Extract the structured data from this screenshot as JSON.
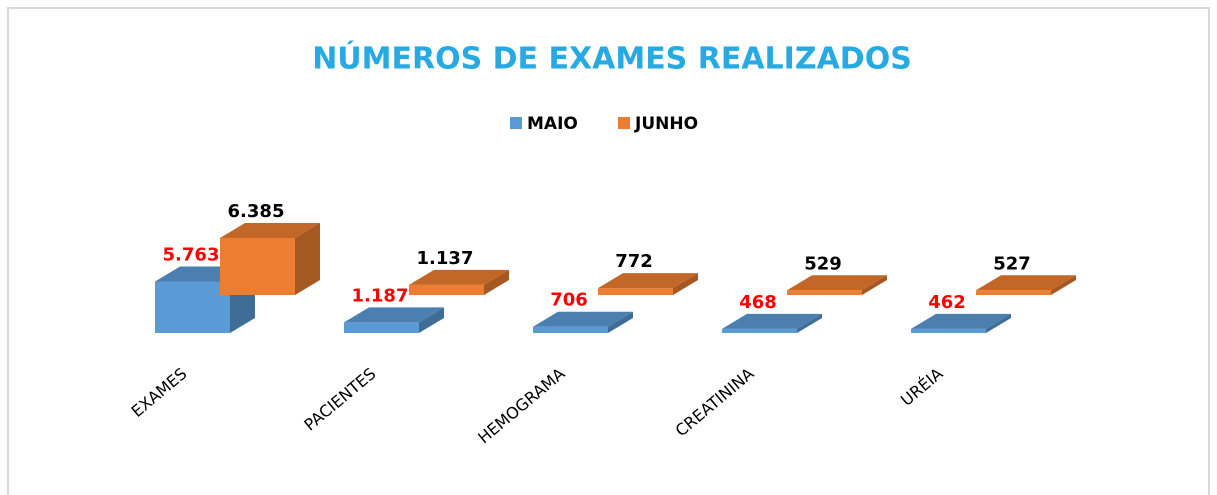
{
  "chart_data": {
    "type": "bar3d",
    "title": "NÚMEROS DE EXAMES REALIZADOS",
    "categories": [
      "EXAMES",
      "PACIENTES",
      "HEMOGRAMA",
      "CREATININA",
      "URÉIA"
    ],
    "series": [
      {
        "name": "MAIO",
        "color": "#5b9bd5",
        "label_color": "#ff0000",
        "values": [
          5763,
          1187,
          706,
          468,
          462
        ],
        "value_labels": [
          "5.763",
          "1.187",
          "706",
          "468",
          "462"
        ]
      },
      {
        "name": "JUNHO",
        "color": "#ed7d31",
        "label_color": "#000000",
        "values": [
          6385,
          1137,
          772,
          529,
          527
        ],
        "value_labels": [
          "6.385",
          "1.137",
          "772",
          "529",
          "527"
        ]
      }
    ],
    "legend": "top"
  }
}
